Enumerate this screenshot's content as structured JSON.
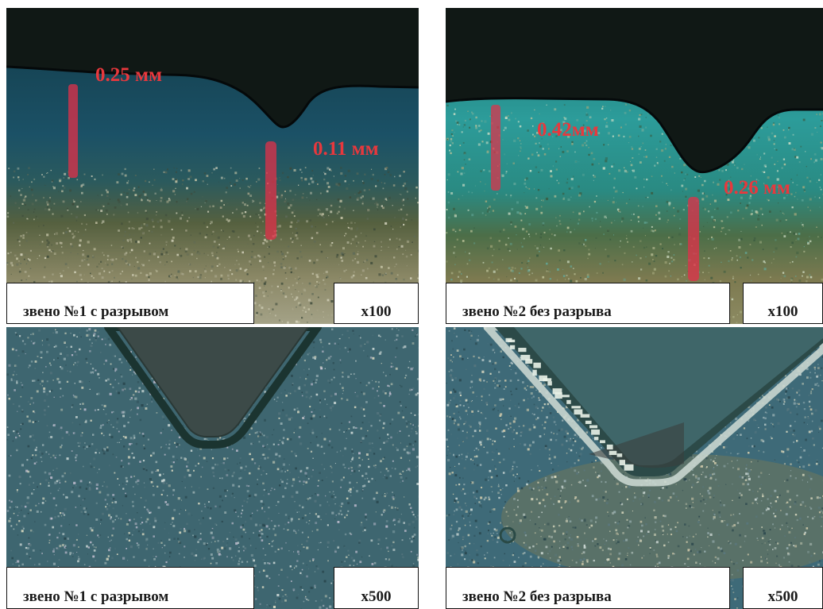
{
  "panels": [
    {
      "caption": "звено №1 с разрывом",
      "magnification": "x100",
      "measurements": [
        "0.25 мм",
        "0.11 мм"
      ]
    },
    {
      "caption": "звено №2 без разрыва",
      "magnification": "x100",
      "measurements": [
        "0.42мм",
        "0.26 мм"
      ]
    },
    {
      "caption": "звено №1 с разрывом",
      "magnification": "x500"
    },
    {
      "caption": "звено №2 без разрыва",
      "magnification": "x500"
    }
  ],
  "colors": {
    "measurement_text": "#e8383d",
    "measurement_bar": "#e0304a",
    "notch_dark": "#101815",
    "layer_teal": "#1d5c64",
    "layer_bright_teal": "#2c9c9a",
    "matrix": "#7f7e5c"
  }
}
